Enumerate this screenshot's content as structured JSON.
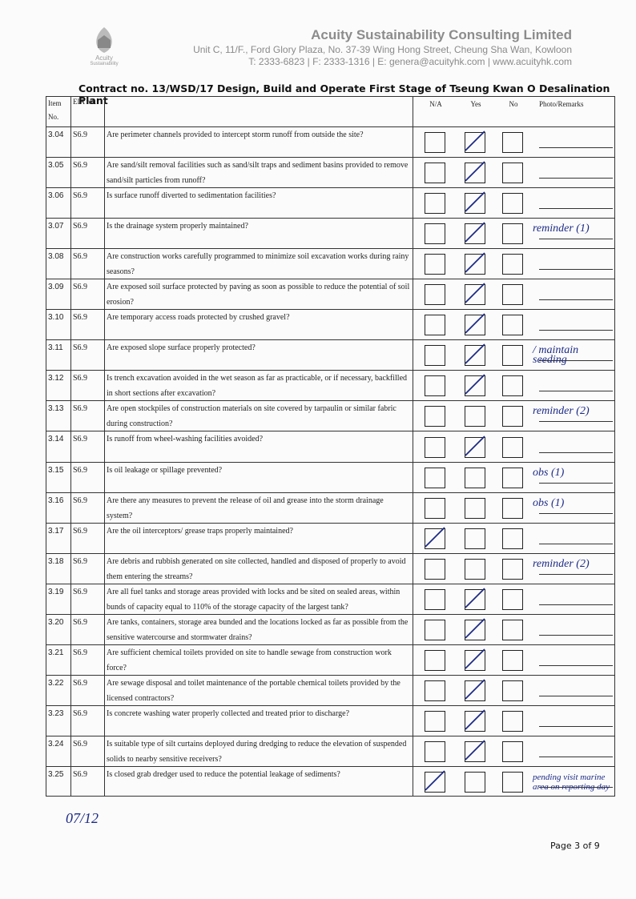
{
  "header": {
    "logo": [
      "Acuity",
      "Sustainability"
    ],
    "company": "Acuity Sustainability Consulting Limited",
    "address": "Unit C, 11/F., Ford Glory Plaza, No. 37-39 Wing Hong Street, Cheung Sha Wan, Kowloon",
    "contact": "T: 2333-6823 | F: 2333-1316 | E: genera@acuityhk.com | www.acuityhk.com"
  },
  "contract": "Contract no.  13/WSD/17 Design, Build and Operate First Stage of Tseung Kwan O Desalination Plant",
  "table": {
    "columns": {
      "item": "Item No.",
      "ref": "EIA ref.",
      "options": [
        "N/A",
        "Yes",
        "No"
      ],
      "remarks": "Photo/Remarks"
    },
    "rows": [
      {
        "item": "3.04",
        "ref": "S6.9",
        "question": "Are perimeter channels provided to intercept storm runoff from outside the site?",
        "checked": "Yes"
      },
      {
        "item": "3.05",
        "ref": "S6.9",
        "question": "Are sand/silt removal facilities such as sand/silt traps and sediment basins provided to remove sand/silt particles from runoff?",
        "checked": "Yes"
      },
      {
        "item": "3.06",
        "ref": "S6.9",
        "question": "Is surface runoff diverted to sedimentation facilities?",
        "checked": "Yes"
      },
      {
        "item": "3.07",
        "ref": "S6.9",
        "question": "Is the drainage system properly maintained?",
        "checked": "Yes",
        "remark": "reminder (1)"
      },
      {
        "item": "3.08",
        "ref": "S6.9",
        "question": "Are construction works carefully programmed to minimize soil excavation works during rainy seasons?",
        "checked": "Yes"
      },
      {
        "item": "3.09",
        "ref": "S6.9",
        "question": "Are exposed soil surface protected by paving as soon as possible to reduce the potential of soil erosion?",
        "checked": "Yes"
      },
      {
        "item": "3.10",
        "ref": "S6.9",
        "question": "Are temporary access roads protected by crushed gravel?",
        "checked": "Yes"
      },
      {
        "item": "3.11",
        "ref": "S6.9",
        "question": "Are exposed slope surface properly protected?",
        "checked": "Yes",
        "remark": "/ maintain seeding"
      },
      {
        "item": "3.12",
        "ref": "S6.9",
        "question": "Is trench excavation avoided in the wet season as far as practicable, or if necessary, backfilled in short sections after excavation?",
        "checked": "Yes"
      },
      {
        "item": "3.13",
        "ref": "S6.9",
        "question": "Are open stockpiles of construction materials on site covered by tarpaulin or similar fabric during construction?",
        "remark": "reminder (2)"
      },
      {
        "item": "3.14",
        "ref": "S6.9",
        "question": "Is runoff from wheel-washing facilities avoided?",
        "checked": "Yes"
      },
      {
        "item": "3.15",
        "ref": "S6.9",
        "question": "Is oil leakage or spillage prevented?",
        "remark": "obs (1)"
      },
      {
        "item": "3.16",
        "ref": "S6.9",
        "question": "Are there any measures to prevent the release of oil and grease into the storm drainage system?",
        "remark": "obs (1)"
      },
      {
        "item": "3.17",
        "ref": "S6.9",
        "question": "Are the oil interceptors/ grease traps properly maintained?",
        "checked": "N/A"
      },
      {
        "item": "3.18",
        "ref": "S6.9",
        "question": "Are debris and rubbish generated on site collected, handled and disposed of properly to avoid them entering the streams?",
        "remark": "reminder (2)"
      },
      {
        "item": "3.19",
        "ref": "S6.9",
        "question": "Are all fuel tanks and storage areas provided with locks and be sited on sealed areas, within bunds of capacity equal to 110% of the storage capacity of the largest tank?",
        "checked": "Yes"
      },
      {
        "item": "3.20",
        "ref": "S6.9",
        "question": "Are tanks, containers, storage area bunded and the locations locked as far as possible from the sensitive watercourse and stormwater drains?",
        "checked": "Yes"
      },
      {
        "item": "3.21",
        "ref": "S6.9",
        "question": "Are sufficient chemical toilets provided on site to handle sewage from construction work force?",
        "checked": "Yes"
      },
      {
        "item": "3.22",
        "ref": "S6.9",
        "question": "Are sewage disposal and toilet maintenance of the portable chemical toilets provided by the licensed contractors?",
        "checked": "Yes"
      },
      {
        "item": "3.23",
        "ref": "S6.9",
        "question": "Is concrete washing water properly collected and treated prior to discharge?",
        "checked": "Yes"
      },
      {
        "item": "3.24",
        "ref": "S6.9",
        "question": "Is suitable type of silt curtains deployed during dredging to reduce the elevation of suspended solids to nearby sensitive receivers?",
        "checked": "Yes"
      },
      {
        "item": "3.25",
        "ref": "S6.9",
        "question": "Is closed grab dredger used to reduce the potential leakage of sediments?",
        "checked": "N/A",
        "remark": "pending visit marine area on reporting day"
      }
    ]
  },
  "handwritten_date": "07/12",
  "footer": "Page 3 of 9"
}
